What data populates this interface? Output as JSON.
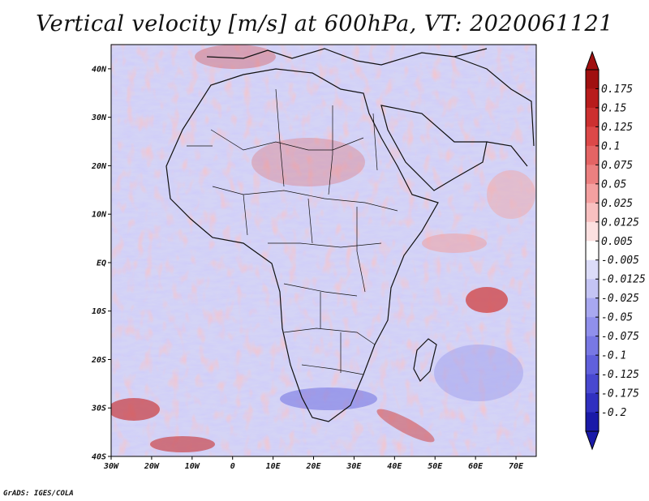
{
  "title": "Vertical velocity [m/s] at 600hPa, VT: 2020061121",
  "credit": "GrADS: IGES/COLA",
  "map": {
    "lon_range": [
      -30,
      75
    ],
    "lat_range": [
      -40,
      45
    ],
    "lon_ticks": [
      "30W",
      "20W",
      "10W",
      "0",
      "10E",
      "20E",
      "30E",
      "40E",
      "50E",
      "60E",
      "70E"
    ],
    "lat_ticks": [
      "40N",
      "30N",
      "20N",
      "10N",
      "EQ",
      "10S",
      "20S",
      "30S",
      "40S"
    ],
    "field": "vertical velocity",
    "level": "600hPa",
    "valid_time": "2020061121"
  },
  "colorbar": {
    "labels": [
      "0.175",
      "0.15",
      "0.125",
      "0.1",
      "0.075",
      "0.05",
      "0.025",
      "0.0125",
      "0.005",
      "-0.005",
      "-0.0125",
      "-0.025",
      "-0.05",
      "-0.075",
      "-0.1",
      "-0.125",
      "-0.175",
      "-0.2"
    ],
    "colors": [
      "#a01010",
      "#b81c1c",
      "#cc3030",
      "#dc4848",
      "#e46464",
      "#ec8080",
      "#f4a0a0",
      "#f8c0c0",
      "#fce0e0",
      "#ffffff",
      "#dcdcf8",
      "#c4c4f4",
      "#a8a8f0",
      "#9090ec",
      "#7878e4",
      "#6060dc",
      "#4848d0",
      "#3030c0",
      "#1a1aa8"
    ]
  }
}
